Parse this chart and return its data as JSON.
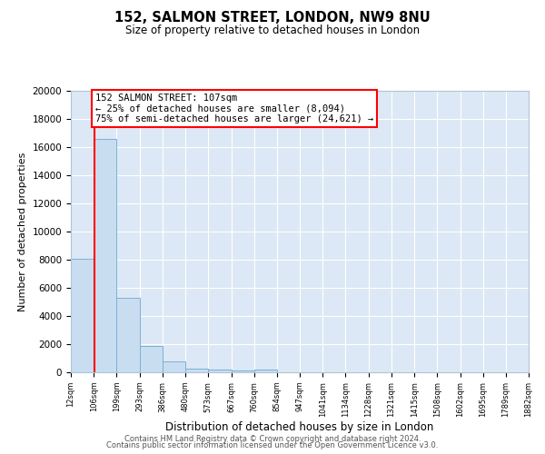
{
  "title": "152, SALMON STREET, LONDON, NW9 8NU",
  "subtitle": "Size of property relative to detached houses in London",
  "xlabel": "Distribution of detached houses by size in London",
  "ylabel": "Number of detached properties",
  "bar_color": "#c9ddf0",
  "bar_edge_color": "#7ab0d8",
  "background_color": "#dce8f5",
  "plot_bg_color": "#dce8f5",
  "grid_color": "#ffffff",
  "red_line_x": 107,
  "annotation_title": "152 SALMON STREET: 107sqm",
  "annotation_line1": "← 25% of detached houses are smaller (8,094)",
  "annotation_line2": "75% of semi-detached houses are larger (24,621) →",
  "bin_edges": [
    12,
    106,
    199,
    293,
    386,
    480,
    573,
    667,
    760,
    854,
    947,
    1041,
    1134,
    1228,
    1321,
    1415,
    1508,
    1602,
    1695,
    1789,
    1882
  ],
  "bin_counts": [
    8094,
    16600,
    5300,
    1850,
    800,
    280,
    200,
    100,
    200,
    0,
    0,
    0,
    0,
    0,
    0,
    0,
    0,
    0,
    0,
    0
  ],
  "ylim": [
    0,
    20000
  ],
  "yticks": [
    0,
    2000,
    4000,
    6000,
    8000,
    10000,
    12000,
    14000,
    16000,
    18000,
    20000
  ],
  "footer_line1": "Contains HM Land Registry data © Crown copyright and database right 2024.",
  "footer_line2": "Contains public sector information licensed under the Open Government Licence v3.0.",
  "tick_labels": [
    "12sqm",
    "106sqm",
    "199sqm",
    "293sqm",
    "386sqm",
    "480sqm",
    "573sqm",
    "667sqm",
    "760sqm",
    "854sqm",
    "947sqm",
    "1041sqm",
    "1134sqm",
    "1228sqm",
    "1321sqm",
    "1415sqm",
    "1508sqm",
    "1602sqm",
    "1695sqm",
    "1789sqm",
    "1882sqm"
  ]
}
